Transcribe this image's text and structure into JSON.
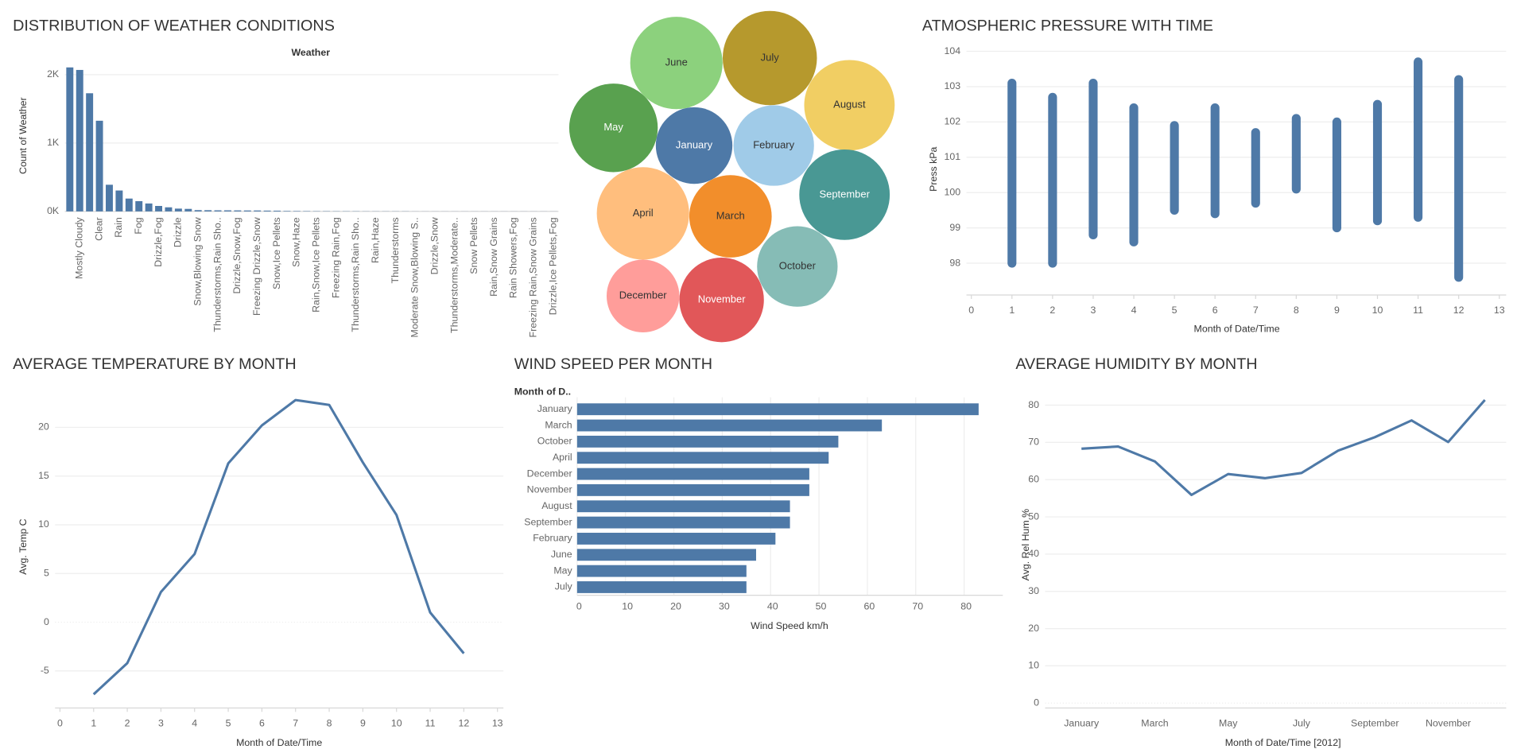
{
  "chart_data": [
    {
      "type": "bar",
      "title": "DISTRIBUTION OF WEATHER CONDITIONS",
      "header": "Weather",
      "ylabel": "Count of Weather",
      "color": "#4e79a7",
      "grid": true,
      "categories": [
        null,
        "Mostly Cloudy",
        null,
        "Clear",
        null,
        "Rain",
        null,
        "Fog",
        null,
        "Drizzle,Fog",
        null,
        "Drizzle",
        null,
        "Snow,Blowing Snow",
        null,
        "Thunderstorms,Rain Sho..",
        null,
        "Drizzle,Snow,Fog",
        null,
        "Freezing Drizzle,Snow",
        null,
        "Snow,Ice Pellets",
        null,
        "Snow,Haze",
        null,
        "Rain,Snow,Ice Pellets",
        null,
        "Freezing Rain,Fog",
        null,
        "Thunderstorms,Rain Sho..",
        null,
        "Rain,Haze",
        null,
        "Thunderstorms",
        null,
        "Moderate Snow,Blowing S..",
        null,
        "Drizzle,Snow",
        null,
        "Thunderstorms,Moderate..",
        null,
        "Snow Pellets",
        null,
        "Rain,Snow Grains",
        null,
        "Rain Showers,Fog",
        null,
        "Freezing Rain,Snow Grains",
        null,
        "Drizzle,Ice Pellets,Fog"
      ],
      "values": [
        2106,
        2069,
        1728,
        1326,
        390,
        306,
        188,
        150,
        116,
        80,
        60,
        41,
        37,
        19,
        18,
        16,
        16,
        15,
        14,
        14,
        12,
        11,
        7,
        6,
        5,
        4,
        4,
        3,
        3,
        3,
        2,
        2,
        2,
        2,
        2,
        1,
        1,
        1,
        1,
        1,
        1,
        1,
        1,
        1,
        1,
        1,
        1,
        1,
        1,
        1
      ],
      "ylim": [
        0,
        2200
      ],
      "yticks": [
        {
          "value": 0,
          "label": "0K"
        },
        {
          "value": 1000,
          "label": "1K"
        },
        {
          "value": 2000,
          "label": "2K"
        }
      ]
    },
    {
      "type": "bubble",
      "categories": [
        "January",
        "February",
        "March",
        "April",
        "May",
        "June",
        "July",
        "August",
        "September",
        "October",
        "November",
        "December"
      ],
      "values": [
        152,
        168,
        176,
        221,
        203,
        221,
        230,
        212,
        212,
        168,
        185,
        137
      ],
      "colors": [
        "#4e79a7",
        "#a0cbe8",
        "#f28e2b",
        "#ffbe7d",
        "#59a14f",
        "#8cd17d",
        "#b6992d",
        "#f1ce63",
        "#499894",
        "#86bcb6",
        "#e15759",
        "#ff9d9a"
      ]
    },
    {
      "type": "strip",
      "title": "ATMOSPHERIC PRESSURE WITH TIME",
      "xlabel": "Month of Date/Time",
      "ylabel": "Press kPa",
      "color": "#4e79a7",
      "grid": true,
      "x": [
        1,
        2,
        3,
        4,
        5,
        6,
        7,
        8,
        9,
        10,
        11,
        12
      ],
      "min": [
        98.0,
        98.0,
        98.8,
        98.6,
        99.5,
        99.4,
        99.7,
        100.1,
        99.0,
        99.2,
        99.3,
        97.6
      ],
      "max": [
        103.1,
        102.7,
        103.1,
        102.4,
        101.9,
        102.4,
        101.7,
        102.1,
        102.0,
        102.5,
        103.7,
        103.2
      ],
      "xlim": [
        0,
        13
      ],
      "xticks": [
        0,
        1,
        2,
        3,
        4,
        5,
        6,
        7,
        8,
        9,
        10,
        11,
        12,
        13
      ],
      "ylim": [
        97.1,
        104.2
      ],
      "yticks": [
        98,
        99,
        100,
        101,
        102,
        103,
        104
      ]
    },
    {
      "type": "line",
      "title": "AVERAGE TEMPERATURE BY MONTH",
      "xlabel": "Month of Date/Time",
      "ylabel": "Avg. Temp C",
      "color": "#4e79a7",
      "grid": true,
      "x": [
        1,
        2,
        3,
        4,
        5,
        6,
        7,
        8,
        9,
        10,
        11,
        12
      ],
      "values": [
        -7.4,
        -4.2,
        3.1,
        7.0,
        16.3,
        20.2,
        22.8,
        22.3,
        16.4,
        11.0,
        1.0,
        -3.2
      ],
      "xlim": [
        0,
        13
      ],
      "xticks": [
        0,
        1,
        2,
        3,
        4,
        5,
        6,
        7,
        8,
        9,
        10,
        11,
        12,
        13
      ],
      "ylim": [
        -8.8,
        24.3
      ],
      "yticks": [
        -5,
        0,
        5,
        10,
        15,
        20
      ]
    },
    {
      "type": "bar",
      "horizontal": true,
      "title": "WIND SPEED PER MONTH",
      "header": "Month of D..",
      "xlabel": "Wind Speed km/h",
      "color": "#4e79a7",
      "grid": true,
      "categories": [
        "January",
        "March",
        "October",
        "April",
        "December",
        "November",
        "August",
        "September",
        "February",
        "June",
        "May",
        "July"
      ],
      "values": [
        83,
        63,
        54,
        52,
        48,
        48,
        44,
        44,
        41,
        37,
        35,
        35
      ],
      "xlim": [
        0,
        88
      ],
      "xticks": [
        0,
        10,
        20,
        30,
        40,
        50,
        60,
        70,
        80
      ]
    },
    {
      "type": "line",
      "title": "AVERAGE HUMIDITY BY MONTH",
      "xlabel": "Month of Date/Time [2012]",
      "ylabel": "Avg. Rel Hum %",
      "color": "#4e79a7",
      "grid": true,
      "categories": [
        "January",
        null,
        "March",
        null,
        "May",
        null,
        "July",
        null,
        "September",
        null,
        "November",
        null
      ],
      "values": [
        68.3,
        68.9,
        64.9,
        55.9,
        61.5,
        60.4,
        61.8,
        67.8,
        71.4,
        75.9,
        70.1,
        81.4
      ],
      "ylim": [
        -1.3,
        84.5
      ],
      "yticks": [
        0,
        10,
        20,
        30,
        40,
        50,
        60,
        70,
        80
      ]
    }
  ]
}
